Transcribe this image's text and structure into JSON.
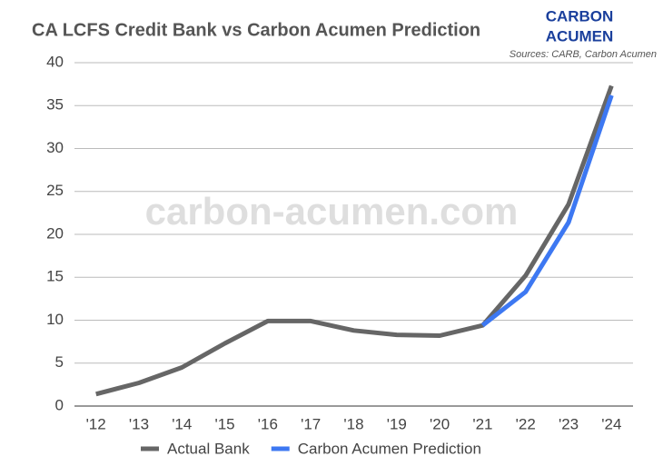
{
  "chart_data": {
    "type": "line",
    "title": "CA LCFS Credit Bank vs Carbon Acumen Prediction",
    "logo": [
      "CARBON",
      "ACUMEN"
    ],
    "source": "Sources: CARB, Carbon Acumen",
    "watermark": "carbon-acumen.com",
    "categories": [
      "'12",
      "'13",
      "'14",
      "'15",
      "'16",
      "'17",
      "'18",
      "'19",
      "'20",
      "'21",
      "'22",
      "'23",
      "'24"
    ],
    "series": [
      {
        "name": "Actual Bank",
        "color": "#666666",
        "values": [
          1.4,
          2.7,
          4.5,
          7.3,
          9.9,
          9.9,
          8.8,
          8.3,
          8.2,
          9.4,
          15.2,
          23.5,
          37.3
        ]
      },
      {
        "name": "Carbon Acumen Prediction",
        "color": "#3d78f2",
        "values": [
          null,
          null,
          null,
          null,
          null,
          null,
          null,
          null,
          null,
          9.4,
          13.3,
          21.4,
          36.2
        ]
      }
    ],
    "ylim": [
      0,
      40
    ],
    "yticks": [
      0,
      5,
      10,
      15,
      20,
      25,
      30,
      35,
      40
    ],
    "grid": true,
    "legend": "bottom"
  }
}
